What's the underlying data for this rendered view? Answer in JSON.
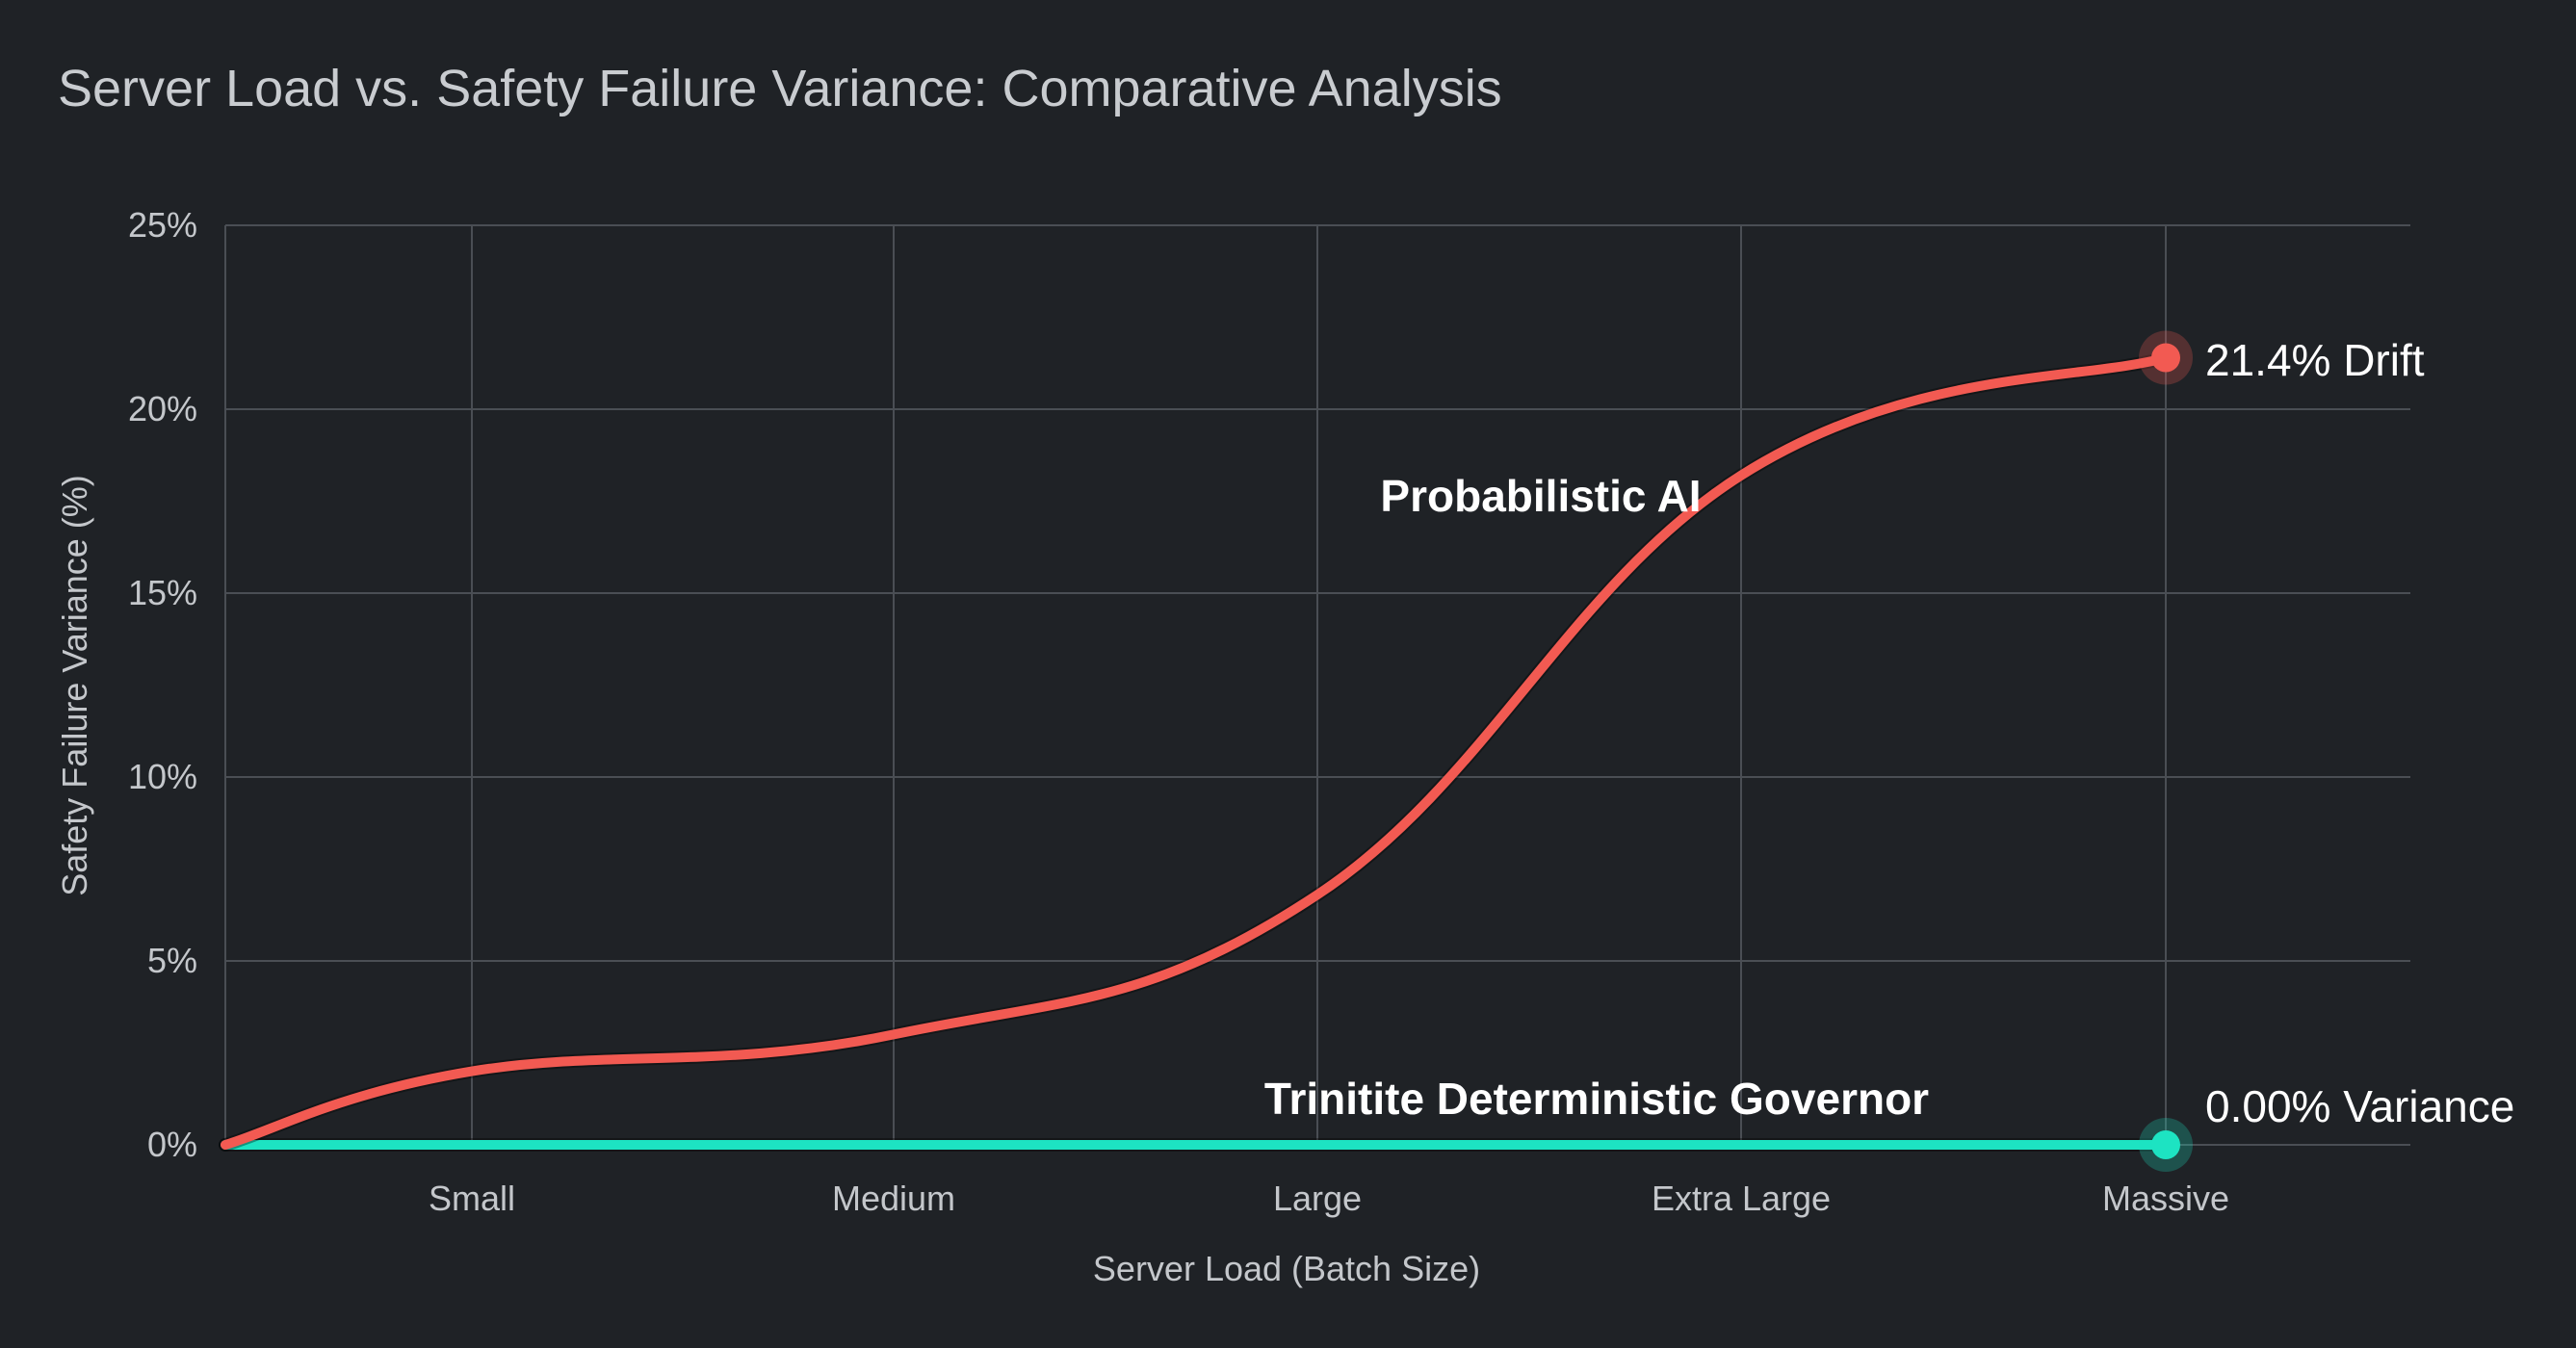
{
  "chart_data": {
    "type": "line",
    "title": "Server Load vs. Safety Failure Variance: Comparative Analysis",
    "xlabel": "Server Load (Batch Size)",
    "ylabel": "Safety Failure Variance (%)",
    "categories": [
      "Small",
      "Medium",
      "Large",
      "Extra Large",
      "Massive"
    ],
    "x_start": "origin",
    "ylim": [
      0,
      25
    ],
    "yticks": [
      {
        "value": 0,
        "label": "0%"
      },
      {
        "value": 5,
        "label": "5%"
      },
      {
        "value": 10,
        "label": "10%"
      },
      {
        "value": 15,
        "label": "15%"
      },
      {
        "value": 20,
        "label": "20%"
      },
      {
        "value": 25,
        "label": "25%"
      }
    ],
    "grid": true,
    "series": [
      {
        "name": "Probabilistic AI",
        "color": "#f25a52",
        "values_with_origin": [
          0,
          2.0,
          3.0,
          6.8,
          18.2,
          21.4
        ],
        "end_label": "21.4% Drift"
      },
      {
        "name": "Trinitite Deterministic Governor",
        "color": "#1de3c2",
        "values_with_origin": [
          0,
          0,
          0,
          0,
          0,
          0
        ],
        "end_label": "0.00% Variance"
      }
    ]
  }
}
